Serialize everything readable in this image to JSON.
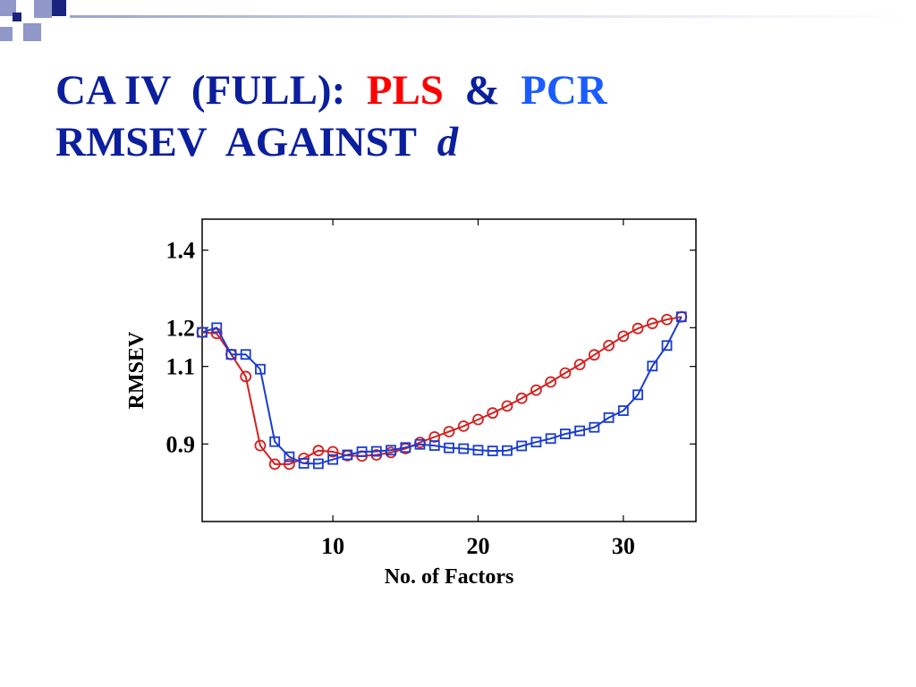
{
  "slide": {
    "title_line1_prefix": "CA IV  (FULL):  ",
    "title_pls": "PLS",
    "title_amp": "  &  ",
    "title_pcr": "PCR",
    "title_line2_prefix": "RMSEV  AGAINST  ",
    "title_d": "d",
    "colors": {
      "title": "#0b1f9e",
      "pls": "#ff0000",
      "pcr": "#1a5cff",
      "deco_dark": "#1a237e",
      "deco_light": "#8f98c8"
    }
  },
  "chart_data": {
    "type": "line",
    "xlabel": "No. of Factors",
    "ylabel": "RMSEV",
    "xlim": [
      1,
      35
    ],
    "ylim": [
      0.7,
      1.48
    ],
    "x_ticks": [
      10,
      20,
      30
    ],
    "x_tick_labels": [
      "10",
      "20",
      "30"
    ],
    "y_ticks": [
      0.9,
      1.1,
      1.2,
      1.4
    ],
    "y_tick_labels": [
      "0.9",
      "1.1",
      "1.2",
      "1.4"
    ],
    "grid": false,
    "legend": "none",
    "series": [
      {
        "marker": "circle",
        "color": "#d42020",
        "x": [
          1,
          2,
          3,
          4,
          5,
          6,
          7,
          8,
          9,
          10,
          11,
          12,
          13,
          14,
          15,
          16,
          17,
          18,
          19,
          20,
          21,
          22,
          23,
          24,
          25,
          26,
          27,
          28,
          29,
          30,
          31,
          32,
          33,
          34
        ],
        "values": [
          1.188,
          1.185,
          1.131,
          1.074,
          0.896,
          0.848,
          0.848,
          0.863,
          0.883,
          0.88,
          0.87,
          0.869,
          0.872,
          0.878,
          0.888,
          0.904,
          0.918,
          0.932,
          0.946,
          0.963,
          0.98,
          0.998,
          1.018,
          1.039,
          1.06,
          1.083,
          1.105,
          1.13,
          1.154,
          1.178,
          1.198,
          1.211,
          1.221,
          1.228
        ]
      },
      {
        "marker": "square",
        "color": "#1a3ccf",
        "x": [
          1,
          2,
          3,
          4,
          5,
          6,
          7,
          8,
          9,
          10,
          11,
          12,
          13,
          14,
          15,
          16,
          17,
          18,
          19,
          20,
          21,
          22,
          23,
          24,
          25,
          26,
          27,
          28,
          29,
          30,
          31,
          32,
          33,
          34
        ],
        "values": [
          1.188,
          1.2,
          1.131,
          1.131,
          1.093,
          0.906,
          0.867,
          0.85,
          0.849,
          0.86,
          0.872,
          0.88,
          0.881,
          0.884,
          0.891,
          0.899,
          0.896,
          0.89,
          0.888,
          0.884,
          0.882,
          0.883,
          0.895,
          0.905,
          0.914,
          0.926,
          0.934,
          0.943,
          0.968,
          0.986,
          1.027,
          1.101,
          1.154,
          1.228
        ]
      }
    ]
  }
}
